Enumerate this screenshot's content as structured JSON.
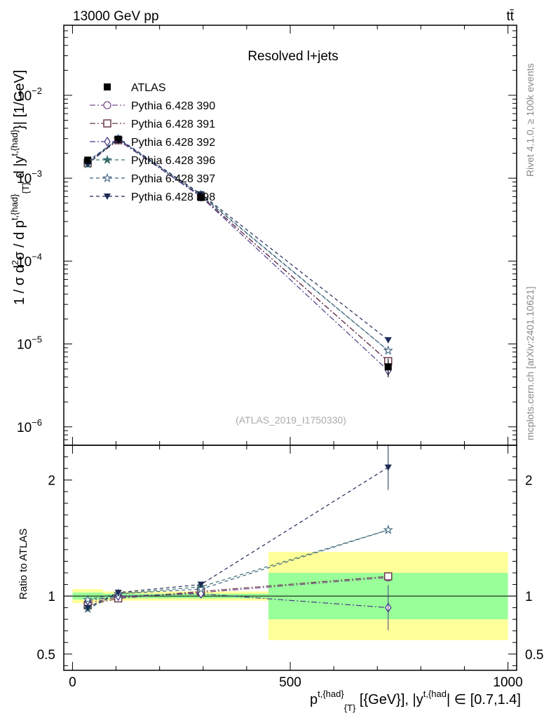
{
  "header": {
    "left": "13000 GeV pp",
    "right": "tt̄"
  },
  "side_labels": {
    "rivet": "Rivet 4.1.0, ≥ 100k events",
    "mcplots": "mcplots.cern.ch [arXiv:2401.10621]"
  },
  "chart_data": {
    "type": "line",
    "title": "Resolved l+jets",
    "analysis_id": "(ATLAS_2019_I1750330)",
    "xlabel": "p^{t,{had}}_{T} [{GeV}], |y^{t,{had}}| ∈ [0.7,1.4]",
    "xlabel_parts": {
      "p": "p",
      "sup1": "t,{had",
      "sup1_close": "}",
      "sub1": "{T",
      "sub1_close": "}",
      "mid": " [{GeV}], |y",
      "sup2": "t,{had",
      "end": "| ∈ [0.7,1.4]"
    },
    "ylabel": "1 / σ d²σ / d p^{t,{had}}_{T} d |y^{t,{had}}| [1/GeV]",
    "ylabel_parts": {
      "a": "1 / σ d",
      "sup2": "2",
      "b": "σ / d p",
      "sup1": "t,{had}",
      "sub1": "{T}",
      "c": " d |y",
      "sup3": "t,{had}",
      "d": "}| [1/GeV]"
    },
    "ratio_ylabel": "Ratio to ATLAS",
    "xlim": [
      -20,
      1020
    ],
    "ylim": [
      6e-07,
      0.07
    ],
    "ratio_ylim": [
      0.36,
      2.3
    ],
    "x_ticks": [
      {
        "value": 0,
        "label": "0"
      },
      {
        "value": 500,
        "label": "500"
      },
      {
        "value": 1000,
        "label": "1000"
      }
    ],
    "y_ticks": [
      {
        "value": 1e-06,
        "base": "10",
        "exp": "−6"
      },
      {
        "value": 1e-05,
        "base": "10",
        "exp": "−5"
      },
      {
        "value": 0.0001,
        "base": "10",
        "exp": "−4"
      },
      {
        "value": 0.001,
        "base": "10",
        "exp": "−3"
      },
      {
        "value": 0.01,
        "base": "10",
        "exp": "−2"
      }
    ],
    "ratio_ticks": [
      {
        "value": 0.5,
        "label": "0.5"
      },
      {
        "value": 1,
        "label": "1"
      },
      {
        "value": 2,
        "label": "2"
      }
    ],
    "bins": [
      {
        "lo": 0,
        "hi": 70
      },
      {
        "lo": 70,
        "hi": 140
      },
      {
        "lo": 140,
        "hi": 450
      },
      {
        "lo": 450,
        "hi": 1000
      }
    ],
    "x": [
      35,
      105,
      295,
      725
    ],
    "data": {
      "name": "ATLAS",
      "values": [
        0.00165,
        0.00293,
        0.000585,
        5.3e-06
      ],
      "err_rel": [
        0.05,
        0.03,
        0.04,
        0.25
      ],
      "band_stat": [
        0.03,
        0.02,
        0.02,
        0.2
      ],
      "band_total": [
        0.06,
        0.04,
        0.04,
        0.38
      ]
    },
    "series": [
      {
        "name": "Pythia 6.428 390",
        "color": "#7b4f8f",
        "marker": "circle-open",
        "dash": "8,3,2,3",
        "ratio": [
          0.94,
          0.99,
          1.03,
          1.16
        ]
      },
      {
        "name": "Pythia 6.428 391",
        "color": "#6b3a4a",
        "marker": "square-open",
        "dash": "8,3,2,3",
        "ratio": [
          0.92,
          0.98,
          1.04,
          1.17
        ]
      },
      {
        "name": "Pythia 6.428 392",
        "color": "#4b3a8a",
        "marker": "diamond-open",
        "dash": "8,3,2,3",
        "ratio": [
          0.96,
          1.0,
          1.02,
          0.9
        ]
      },
      {
        "name": "Pythia 6.428 396",
        "color": "#3a6f6f",
        "marker": "star-filled",
        "dash": "5,4",
        "ratio": [
          0.89,
          1.02,
          1.08,
          1.57
        ]
      },
      {
        "name": "Pythia 6.428 397",
        "color": "#3a6080",
        "marker": "star-open",
        "dash": "5,4",
        "ratio": [
          0.97,
          1.02,
          1.06,
          1.57
        ]
      },
      {
        "name": "Pythia 6.428 398",
        "color": "#1c2a55",
        "marker": "triangle-down",
        "dash": "5,4",
        "ratio": [
          0.9,
          1.03,
          1.1,
          2.11
        ]
      }
    ],
    "ratio_errors": [
      0.04,
      0.03,
      0.03,
      0.3
    ]
  }
}
